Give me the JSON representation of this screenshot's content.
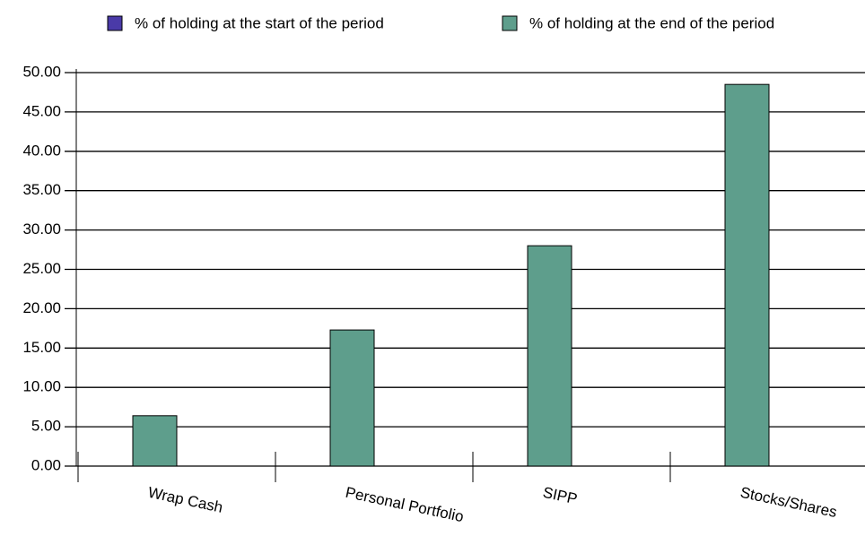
{
  "chart_data": {
    "type": "bar",
    "categories": [
      "Wrap Cash",
      "Personal Portfolio",
      "SIPP",
      "Stocks/Shares"
    ],
    "series": [
      {
        "name": "% of holding at the start of the period",
        "color": "#4a3aa8",
        "values": [
          0,
          0,
          0,
          0
        ]
      },
      {
        "name": "% of holding at the end of the period",
        "color": "#5e9e8c",
        "values": [
          6.4,
          17.3,
          28.0,
          48.5
        ]
      }
    ],
    "ylim": [
      0,
      50
    ],
    "yticks": [
      {
        "value": 0,
        "label": "0.00"
      },
      {
        "value": 5,
        "label": "5.00"
      },
      {
        "value": 10,
        "label": "10.00"
      },
      {
        "value": 15,
        "label": "15.00"
      },
      {
        "value": 20,
        "label": "20.00"
      },
      {
        "value": 25,
        "label": "25.00"
      },
      {
        "value": 30,
        "label": "30.00"
      },
      {
        "value": 35,
        "label": "35.00"
      },
      {
        "value": 40,
        "label": "40.00"
      },
      {
        "value": 45,
        "label": "45.00"
      },
      {
        "value": 50,
        "label": "50.00"
      }
    ],
    "grid": true,
    "legend": "top"
  }
}
